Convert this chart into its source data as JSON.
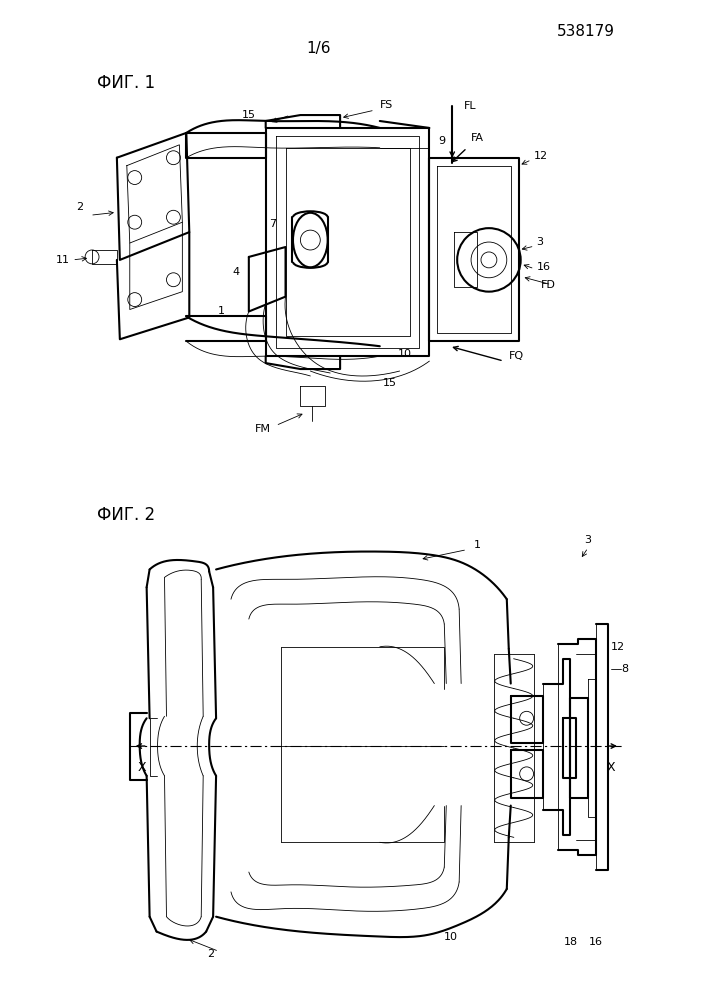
{
  "patent_number": "538179",
  "page_label": "1/6",
  "fig1_label": "ФИГ. 1",
  "fig2_label": "ФИГ. 2",
  "background_color": "#ffffff",
  "line_color": "#000000",
  "lw_main": 1.0,
  "lw_thin": 0.6,
  "lw_thick": 1.5
}
